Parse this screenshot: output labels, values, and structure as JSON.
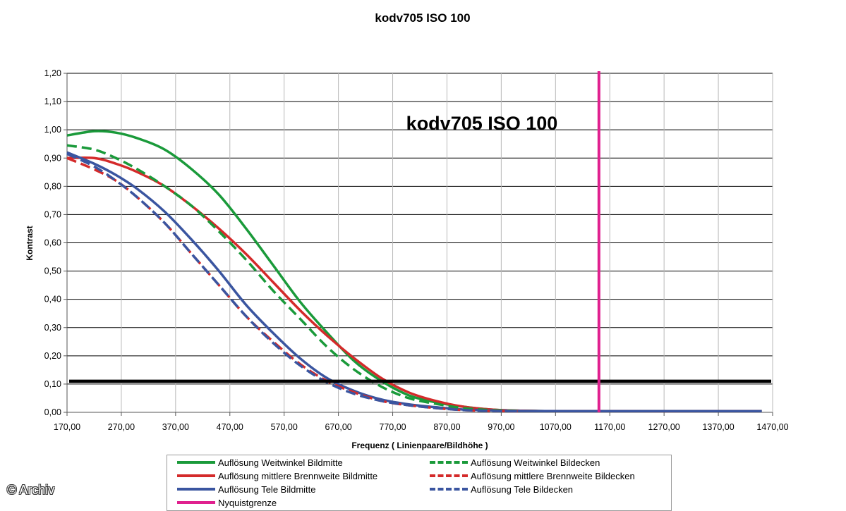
{
  "page": {
    "title": "kodv705 ISO 100",
    "copyright": "© Archiv"
  },
  "chart_data": {
    "type": "line",
    "title": "kodv705 ISO 100",
    "inner_title": "kodv705 ISO 100",
    "xlabel": "Frequenz ( Linienpaare/Bildhöhe )",
    "ylabel": "Kontrast",
    "xlim": [
      170,
      1470
    ],
    "ylim": [
      0,
      1.2
    ],
    "x_ticks": [
      "170,00",
      "270,00",
      "370,00",
      "470,00",
      "570,00",
      "670,00",
      "770,00",
      "870,00",
      "970,00",
      "1070,00",
      "1170,00",
      "1270,00",
      "1370,00",
      "1470,00"
    ],
    "y_ticks": [
      "0,00",
      "0,10",
      "0,20",
      "0,30",
      "0,40",
      "0,50",
      "0,60",
      "0,70",
      "0,80",
      "0,90",
      "1,00",
      "1,10",
      "1,20"
    ],
    "grid": true,
    "legend_position": "bottom",
    "reference_lines": [
      {
        "orientation": "horizontal",
        "y": 0.11,
        "color": "#000000"
      },
      {
        "orientation": "vertical",
        "x": 1150,
        "color": "#e0208e",
        "name": "Nyquistgrenze"
      }
    ],
    "series": [
      {
        "name": "Auflösung Weitwinkel Bildmitte",
        "color": "#1a9a3a",
        "dash": "solid",
        "x": [
          170,
          220,
          260,
          300,
          350,
          400,
          450,
          500,
          550,
          600,
          650,
          700,
          750,
          800,
          850,
          900,
          950,
          1000,
          1100,
          1450
        ],
        "y": [
          0.98,
          0.995,
          0.99,
          0.97,
          0.93,
          0.86,
          0.77,
          0.65,
          0.52,
          0.39,
          0.28,
          0.18,
          0.11,
          0.06,
          0.035,
          0.02,
          0.01,
          0.006,
          0.004,
          0.004
        ]
      },
      {
        "name": "Auflösung mittlere Brennweite Bildmitte",
        "color": "#d42a2a",
        "dash": "solid",
        "x": [
          170,
          220,
          260,
          300,
          350,
          400,
          450,
          500,
          550,
          600,
          650,
          700,
          750,
          800,
          850,
          900,
          950,
          1000,
          1100,
          1450
        ],
        "y": [
          0.9,
          0.9,
          0.88,
          0.85,
          0.8,
          0.73,
          0.65,
          0.56,
          0.46,
          0.36,
          0.27,
          0.19,
          0.12,
          0.07,
          0.04,
          0.02,
          0.01,
          0.006,
          0.004,
          0.004
        ]
      },
      {
        "name": "Auflösung Tele Bildmitte",
        "color": "#3a55a0",
        "dash": "solid",
        "x": [
          170,
          220,
          260,
          300,
          350,
          400,
          450,
          500,
          550,
          600,
          650,
          700,
          750,
          800,
          850,
          900,
          950,
          1000,
          1100,
          1450
        ],
        "y": [
          0.92,
          0.88,
          0.84,
          0.79,
          0.71,
          0.61,
          0.5,
          0.38,
          0.28,
          0.19,
          0.12,
          0.075,
          0.045,
          0.028,
          0.018,
          0.01,
          0.007,
          0.005,
          0.004,
          0.004
        ]
      },
      {
        "name": "Nyquistgrenze",
        "color": "#e0208e",
        "dash": "solid",
        "x": [
          1150,
          1150
        ],
        "y": [
          0,
          1.2
        ]
      },
      {
        "name": "Auflösung Weitwinkel Bildecken",
        "color": "#1a9a3a",
        "dash": "dashed",
        "x": [
          170,
          220,
          260,
          300,
          350,
          400,
          450,
          500,
          550,
          600,
          650,
          700,
          750,
          800,
          850,
          900,
          950,
          1000
        ],
        "y": [
          0.945,
          0.93,
          0.9,
          0.86,
          0.8,
          0.73,
          0.64,
          0.54,
          0.43,
          0.33,
          0.23,
          0.15,
          0.09,
          0.05,
          0.03,
          0.015,
          0.008,
          0.005
        ]
      },
      {
        "name": "Auflösung mittlere Brennweite Bildecken",
        "color": "#d42a2a",
        "dash": "dashed",
        "x": [
          170,
          220,
          260,
          300,
          350,
          400,
          450,
          500,
          550,
          600,
          650,
          700,
          750,
          800,
          850,
          900,
          950,
          1000
        ],
        "y": [
          0.9,
          0.86,
          0.82,
          0.76,
          0.67,
          0.56,
          0.45,
          0.34,
          0.25,
          0.17,
          0.11,
          0.07,
          0.04,
          0.025,
          0.015,
          0.008,
          0.005,
          0.004
        ]
      },
      {
        "name": "Auflösung Tele Bildecken",
        "color": "#3a55a0",
        "dash": "dashed",
        "x": [
          170,
          220,
          260,
          300,
          350,
          400,
          450,
          500,
          550,
          600,
          650,
          700,
          750,
          800,
          850,
          900,
          950,
          1000
        ],
        "y": [
          0.915,
          0.87,
          0.82,
          0.76,
          0.67,
          0.56,
          0.45,
          0.34,
          0.245,
          0.165,
          0.105,
          0.065,
          0.04,
          0.025,
          0.015,
          0.008,
          0.005,
          0.004
        ]
      }
    ]
  },
  "legend": {
    "items": [
      {
        "label": "Auflösung Weitwinkel Bildmitte",
        "color": "#1a9a3a",
        "dash": "solid"
      },
      {
        "label": "Auflösung Weitwinkel Bildecken",
        "color": "#1a9a3a",
        "dash": "dashed"
      },
      {
        "label": "Auflösung mittlere Brennweite Bildmitte",
        "color": "#d42a2a",
        "dash": "solid"
      },
      {
        "label": "Auflösung mittlere Brennweite Bildecken",
        "color": "#d42a2a",
        "dash": "dashed"
      },
      {
        "label": "Auflösung Tele Bildmitte",
        "color": "#3a55a0",
        "dash": "solid"
      },
      {
        "label": "Auflösung Tele Bildecken",
        "color": "#3a55a0",
        "dash": "dashed"
      },
      {
        "label": "Nyquistgrenze",
        "color": "#e0208e",
        "dash": "solid"
      }
    ]
  }
}
